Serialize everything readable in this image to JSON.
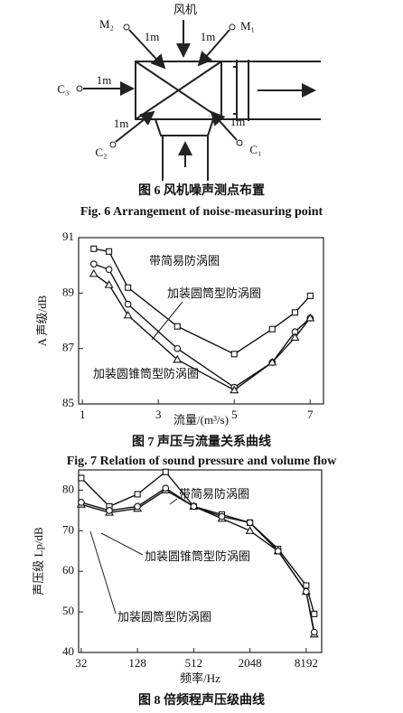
{
  "diagram": {
    "fan_label": "风机",
    "points": [
      "M₂",
      "M₁",
      "C₃",
      "C₂",
      "C₁"
    ],
    "distances": [
      "1m",
      "1m",
      "1m",
      "1m",
      "1m"
    ],
    "caption": "图 6   风机噪声测点布置",
    "caption_en": "Fig. 6   Arrangement of noise-measuring point"
  },
  "chart_data": [
    {
      "type": "line",
      "caption": "图 7  声压与流量关系曲线",
      "caption_en": "Fig. 7   Relation of sound pressure and volume flow",
      "xlabel": "流量/(m³/s)",
      "ylabel": "A 声级/dB",
      "xlim": [
        0.9,
        7.35
      ],
      "xticks": [
        1,
        3,
        5,
        7
      ],
      "ylim": [
        85,
        91
      ],
      "yticks": [
        85,
        87,
        89,
        91
      ],
      "xscale": "linear",
      "series": [
        {
          "name": "带简易防涡圈",
          "color": "#111111",
          "marker": "square",
          "x": [
            1.3,
            1.7,
            2.2,
            3.5,
            5.0,
            6.0,
            6.6,
            7.0
          ],
          "values": [
            90.6,
            90.5,
            89.2,
            87.8,
            86.8,
            87.7,
            88.3,
            88.9
          ]
        },
        {
          "name": "加装圆筒型防涡圈",
          "color": "#111111",
          "marker": "circle",
          "x": [
            1.3,
            1.7,
            2.2,
            3.5,
            5.0,
            6.0,
            6.6,
            7.0
          ],
          "values": [
            90.05,
            89.85,
            88.6,
            87.0,
            85.6,
            86.5,
            87.6,
            88.1
          ]
        },
        {
          "name": "加装圆锥筒型防涡圈",
          "color": "#111111",
          "marker": "triangle",
          "x": [
            1.3,
            1.7,
            2.2,
            3.5,
            5.0,
            6.0,
            6.6,
            7.0
          ],
          "values": [
            89.7,
            89.3,
            88.2,
            86.6,
            85.5,
            86.5,
            87.4,
            88.1
          ]
        }
      ]
    },
    {
      "type": "line",
      "caption": "图 8  倍频程声压级曲线",
      "xlabel": "频率/Hz",
      "ylabel": "声压级 Lp/dB",
      "xlim": [
        30,
        12000
      ],
      "xticks": [
        32,
        128,
        512,
        2048,
        8192
      ],
      "ylim": [
        40,
        85
      ],
      "yticks": [
        40,
        50,
        60,
        70,
        80
      ],
      "xscale": "log",
      "series": [
        {
          "name": "带简易防涡圈",
          "color": "#111111",
          "marker": "square",
          "x": [
            32,
            64,
            128,
            256,
            512,
            1024,
            2048,
            4096,
            8192,
            10000
          ],
          "values": [
            83,
            76,
            79,
            84.5,
            76,
            74,
            72,
            65.5,
            56.5,
            49.5
          ]
        },
        {
          "name": "加装圆锥筒型防涡圈",
          "color": "#111111",
          "marker": "triangle",
          "x": [
            32,
            64,
            128,
            256,
            512,
            1024,
            2048,
            4096,
            8192,
            10000
          ],
          "values": [
            76.5,
            74.5,
            75.5,
            80,
            76,
            73,
            70,
            65,
            55,
            44.5
          ]
        },
        {
          "name": "加装圆筒型防涡圈",
          "color": "#111111",
          "marker": "circle",
          "x": [
            32,
            64,
            128,
            256,
            512,
            1024,
            2048,
            4096,
            8192,
            10000
          ],
          "values": [
            77,
            75,
            76,
            80.5,
            76,
            73.5,
            72,
            65,
            55,
            45
          ]
        }
      ]
    }
  ]
}
